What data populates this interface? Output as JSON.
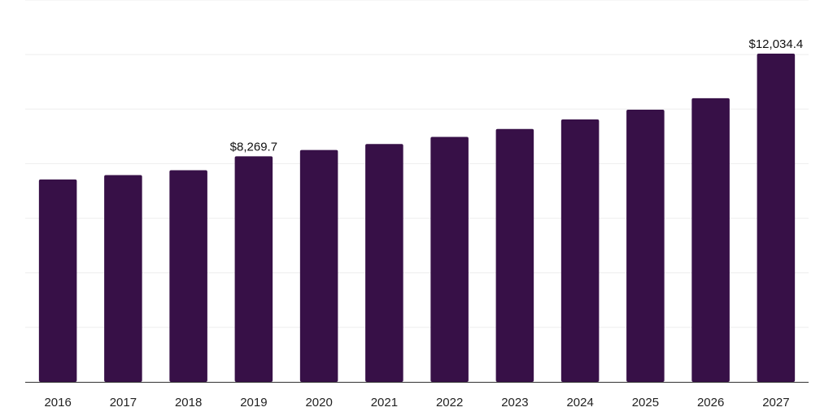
{
  "chart_data": {
    "type": "bar",
    "title": "",
    "xlabel": "",
    "ylabel": "",
    "categories": [
      "2016",
      "2017",
      "2018",
      "2019",
      "2020",
      "2021",
      "2022",
      "2023",
      "2024",
      "2025",
      "2026",
      "2027"
    ],
    "values": [
      7420,
      7580,
      7760,
      8269.7,
      8500,
      8720,
      8980,
      9270,
      9620,
      9980,
      10400,
      12034.4
    ],
    "data_labels": [
      {
        "index": 3,
        "text": "$8,269.7"
      },
      {
        "index": 11,
        "text": "$12,034.4"
      }
    ],
    "ylim": [
      0,
      14000
    ],
    "grid": true,
    "legend": "none",
    "bar_color": "#371047"
  }
}
